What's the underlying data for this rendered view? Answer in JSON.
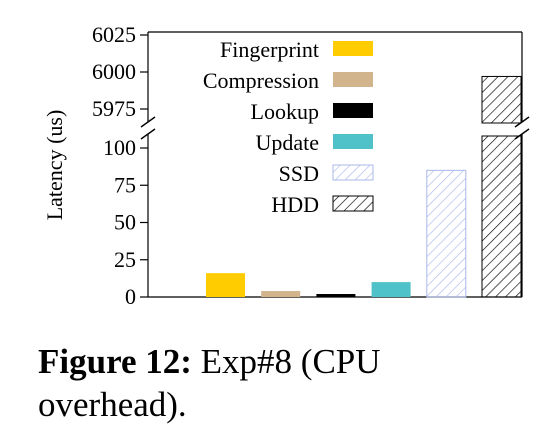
{
  "chart_data": {
    "type": "bar",
    "ylabel": "Latency (us)",
    "axis_break": true,
    "lower_ylim": [
      0,
      100
    ],
    "upper_ylim": [
      5975,
      6025
    ],
    "lower_ticks": [
      "0",
      "25",
      "50",
      "75",
      "100"
    ],
    "upper_ticks": [
      "5975",
      "6000",
      "6025"
    ],
    "series": [
      {
        "name": "Fingerprint",
        "value": 16,
        "color": "#ffcc00",
        "pattern": "solid"
      },
      {
        "name": "Compression",
        "value": 4,
        "color": "#d2b48c",
        "pattern": "solid"
      },
      {
        "name": "Lookup",
        "value": 2,
        "color": "#000000",
        "pattern": "solid"
      },
      {
        "name": "Update",
        "value": 10,
        "color": "#4fc1c8",
        "pattern": "solid"
      },
      {
        "name": "SSD",
        "value": 85,
        "color": "#aab8ea",
        "pattern": "hatch"
      },
      {
        "name": "HDD",
        "value": 5997,
        "color": "#000000",
        "pattern": "hatch"
      }
    ],
    "legend_position": "top-left"
  },
  "caption": {
    "label": "Figure 12:",
    "text": " Exp#8 (CPU overhead)."
  }
}
